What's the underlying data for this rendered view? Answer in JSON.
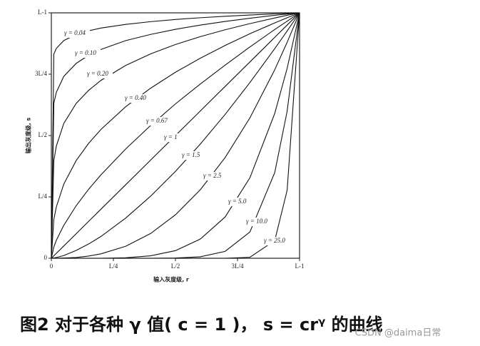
{
  "chart_data": {
    "type": "line",
    "caption": "图2 对于各种 γ 值( c = 1 )， s = crᵞ 的曲线",
    "watermark": "CSDN @daima日常",
    "x_label": "输入灰度级, r",
    "y_label": "输出灰度级, s",
    "xlim": [
      0,
      1
    ],
    "ylim": [
      0,
      1
    ],
    "xticks": [
      0,
      {
        "value": 0.25,
        "label": "L/4"
      },
      {
        "value": 0.5,
        "label": "L/2"
      },
      {
        "value": 0.75,
        "label": "3L/4"
      },
      {
        "value": 1,
        "label": "L-1"
      }
    ],
    "yticks": [
      0,
      {
        "value": 0.25,
        "label": "L/4"
      },
      {
        "value": 0.5,
        "label": "L/2"
      },
      {
        "value": 0.75,
        "label": "3L/4"
      },
      {
        "value": 1,
        "label": "L-1"
      }
    ],
    "x": [
      0,
      0.01,
      0.02,
      0.05,
      0.1,
      0.15,
      0.2,
      0.3,
      0.4,
      0.5,
      0.6,
      0.7,
      0.8,
      0.9,
      0.95,
      1
    ],
    "series": [
      {
        "name": "γ = 0.04",
        "color": "#111",
        "values": [
          0,
          0.832,
          0.855,
          0.887,
          0.912,
          0.927,
          0.938,
          0.953,
          0.964,
          0.973,
          0.98,
          0.986,
          0.991,
          0.996,
          0.998,
          1
        ]
      },
      {
        "name": "γ = 0.10",
        "color": "#111",
        "values": [
          0,
          0.631,
          0.676,
          0.741,
          0.794,
          0.827,
          0.851,
          0.887,
          0.912,
          0.933,
          0.95,
          0.965,
          0.978,
          0.99,
          0.995,
          1
        ]
      },
      {
        "name": "γ = 0.20",
        "color": "#111",
        "values": [
          0,
          0.398,
          0.457,
          0.549,
          0.631,
          0.684,
          0.725,
          0.786,
          0.833,
          0.871,
          0.903,
          0.931,
          0.956,
          0.979,
          0.99,
          1
        ]
      },
      {
        "name": "γ = 0.40",
        "color": "#111",
        "values": [
          0,
          0.158,
          0.209,
          0.302,
          0.398,
          0.468,
          0.525,
          0.618,
          0.693,
          0.758,
          0.815,
          0.867,
          0.915,
          0.959,
          0.98,
          1
        ]
      },
      {
        "name": "γ = 0.67",
        "color": "#111",
        "values": [
          0,
          0.046,
          0.073,
          0.134,
          0.214,
          0.281,
          0.34,
          0.446,
          0.541,
          0.629,
          0.71,
          0.787,
          0.861,
          0.932,
          0.966,
          1
        ]
      },
      {
        "name": "γ = 1",
        "color": "#111",
        "values": [
          0,
          0.01,
          0.02,
          0.05,
          0.1,
          0.15,
          0.2,
          0.3,
          0.4,
          0.5,
          0.6,
          0.7,
          0.8,
          0.9,
          0.95,
          1
        ]
      },
      {
        "name": "γ = 1.5",
        "color": "#111",
        "values": [
          0,
          0.001,
          0.003,
          0.011,
          0.032,
          0.058,
          0.089,
          0.164,
          0.253,
          0.354,
          0.465,
          0.586,
          0.716,
          0.854,
          0.926,
          1
        ]
      },
      {
        "name": "γ = 2.5",
        "color": "#111",
        "values": [
          0,
          0,
          0,
          0.001,
          0.003,
          0.009,
          0.018,
          0.049,
          0.101,
          0.177,
          0.279,
          0.41,
          0.572,
          0.768,
          0.88,
          1
        ]
      },
      {
        "name": "γ = 5.0",
        "color": "#111",
        "values": [
          0,
          0,
          0,
          0,
          0,
          0,
          0,
          0.002,
          0.01,
          0.031,
          0.078,
          0.168,
          0.328,
          0.59,
          0.774,
          1
        ]
      },
      {
        "name": "γ = 10.0",
        "color": "#111",
        "values": [
          0,
          0,
          0,
          0,
          0,
          0,
          0,
          0,
          0,
          0.001,
          0.006,
          0.028,
          0.107,
          0.349,
          0.599,
          1
        ]
      },
      {
        "name": "γ = 25.0",
        "color": "#111",
        "values": [
          0,
          0,
          0,
          0,
          0,
          0,
          0,
          0,
          0,
          0,
          0,
          0,
          0.004,
          0.072,
          0.277,
          1
        ]
      }
    ]
  }
}
